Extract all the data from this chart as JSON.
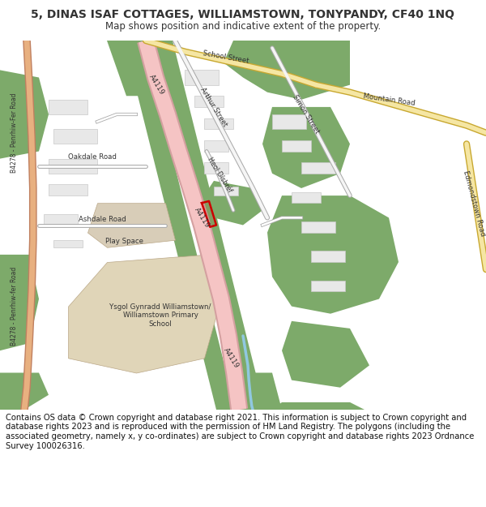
{
  "title": "5, DINAS ISAF COTTAGES, WILLIAMSTOWN, TONYPANDY, CF40 1NQ",
  "subtitle": "Map shows position and indicative extent of the property.",
  "footer": "Contains OS data © Crown copyright and database right 2021. This information is subject to Crown copyright and database rights 2023 and is reproduced with the permission of HM Land Registry. The polygons (including the associated geometry, namely x, y co-ordinates) are subject to Crown copyright and database rights 2023 Ordnance Survey 100026316.",
  "map_bg": "#f2efe9",
  "road_pink": "#f5c4c4",
  "road_pink_dark": "#d4a0a0",
  "road_yellow": "#f5e6a3",
  "road_yellow_border": "#c8a830",
  "road_orange": "#e8b080",
  "road_orange_border": "#c08060",
  "green_area": "#7daa6a",
  "beige_area": "#e0d5b8",
  "blue_stream": "#90c8e0",
  "plot_color": "#cc0000",
  "text_color": "#333333",
  "title_fontsize": 10,
  "subtitle_fontsize": 8.5,
  "footer_fontsize": 7.2
}
